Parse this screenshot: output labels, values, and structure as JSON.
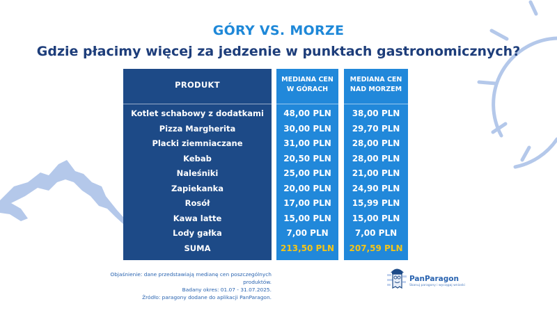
{
  "title": "GÓRY VS. MORZE",
  "subtitle": "Gdzie płacimy więcej za jedzenie w punktach gastronomicznych?",
  "table": {
    "headers": {
      "product": "PRODUKT",
      "mountains_line1": "MEDIANA CEN",
      "mountains_line2": "W GÓRACH",
      "sea_line1": "MEDIANA CEN",
      "sea_line2": "NAD MORZEM"
    },
    "rows": [
      {
        "product": "Kotlet schabowy z dodatkami",
        "mountains": "48,00 PLN",
        "sea": "38,00 PLN"
      },
      {
        "product": "Pizza Margherita",
        "mountains": "30,00 PLN",
        "sea": "29,70 PLN"
      },
      {
        "product": "Placki ziemniaczane",
        "mountains": "31,00 PLN",
        "sea": "28,00 PLN"
      },
      {
        "product": "Kebab",
        "mountains": "20,50 PLN",
        "sea": "28,00 PLN"
      },
      {
        "product": "Naleśniki",
        "mountains": "25,00 PLN",
        "sea": "21,00 PLN"
      },
      {
        "product": "Zapiekanka",
        "mountains": "20,00 PLN",
        "sea": "24,90 PLN"
      },
      {
        "product": "Rosół",
        "mountains": "17,00 PLN",
        "sea": "15,99 PLN"
      },
      {
        "product": "Kawa latte",
        "mountains": "15,00 PLN",
        "sea": "15,00 PLN"
      },
      {
        "product": "Lody gałka",
        "mountains": "7,00 PLN",
        "sea": "7,00 PLN"
      }
    ],
    "sum": {
      "product": "SUMA",
      "mountains": "213,50 PLN",
      "sea": "207,59 PLN"
    }
  },
  "notes": {
    "line1": "Objaśnienie: dane przedstawiają medianę cen poszczególnych produktów.",
    "line2": "Badany okres: 01.07 - 31.07.2025.",
    "line3": "Źródło: paragony dodane do aplikacji PanParagon."
  },
  "logo": {
    "name": "PanParagon",
    "tagline": "Skanuj paragony i wyciągaj wnioski"
  },
  "colors": {
    "product_column": "#1d4a87",
    "price_columns": "#2188da",
    "title": "#1e88d8",
    "subtitle": "#1d3d7a",
    "sum_highlight": "#f5c518",
    "decoration": "#b4c8ea"
  }
}
